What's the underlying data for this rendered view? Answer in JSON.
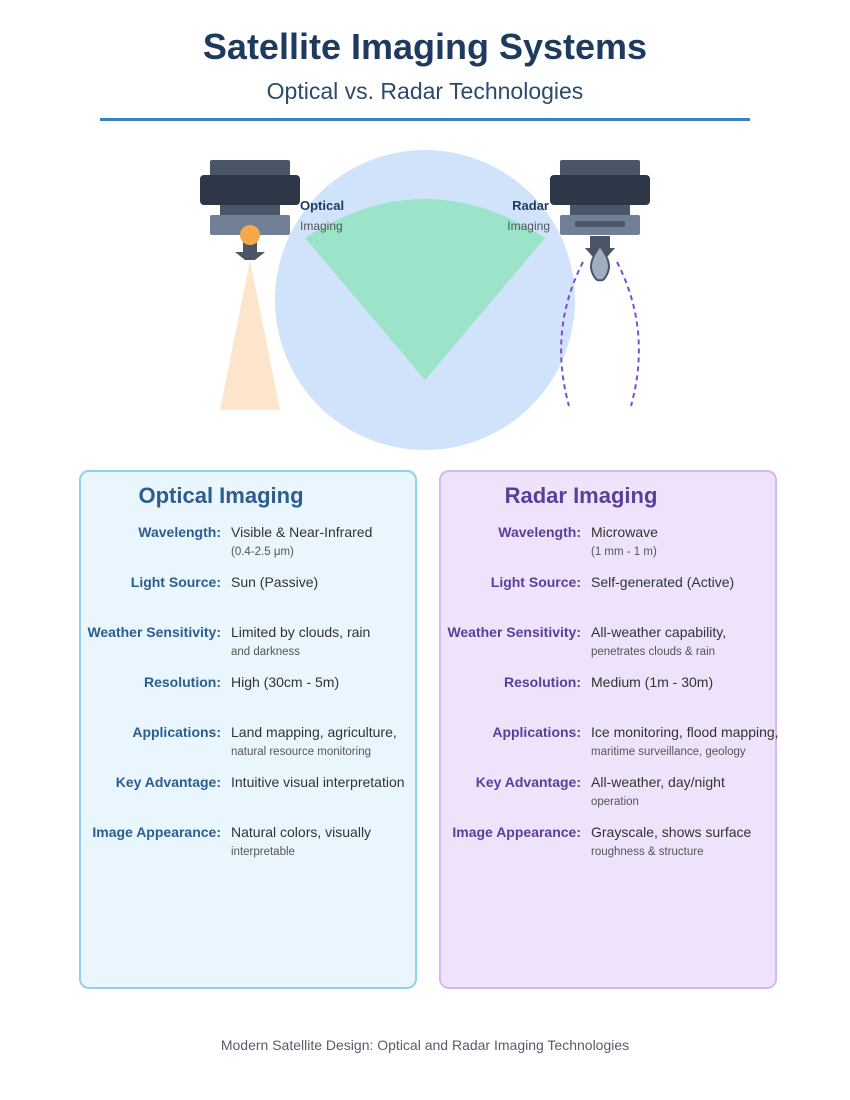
{
  "header": {
    "title": "Satellite Imaging Systems",
    "subtitle": "Optical vs. Radar Technologies"
  },
  "diagram": {
    "optical_label": "Optical",
    "optical_sub": "Imaging",
    "radar_label": "Radar",
    "radar_sub": "Imaging"
  },
  "optical": {
    "title": "Optical Imaging",
    "rows": [
      {
        "label": "Wavelength:",
        "value": "Visible & Near-Infrared",
        "sub": "(0.4-2.5 μm)"
      },
      {
        "label": "Light Source:",
        "value": "Sun (Passive)",
        "sub": ""
      },
      {
        "label": "Weather Sensitivity:",
        "value": "Limited by clouds, rain",
        "sub": "and darkness"
      },
      {
        "label": "Resolution:",
        "value": "High (30cm - 5m)",
        "sub": ""
      },
      {
        "label": "Applications:",
        "value": "Land mapping, agriculture,",
        "sub": "natural resource monitoring"
      },
      {
        "label": "Key Advantage:",
        "value": "Intuitive visual interpretation",
        "sub": ""
      },
      {
        "label": "Image Appearance:",
        "value": "Natural colors, visually",
        "sub": "interpretable"
      }
    ]
  },
  "radar": {
    "title": "Radar Imaging",
    "rows": [
      {
        "label": "Wavelength:",
        "value": "Microwave",
        "sub": "(1 mm - 1 m)"
      },
      {
        "label": "Light Source:",
        "value": "Self-generated (Active)",
        "sub": ""
      },
      {
        "label": "Weather Sensitivity:",
        "value": "All-weather capability,",
        "sub": "penetrates clouds & rain"
      },
      {
        "label": "Resolution:",
        "value": "Medium (1m - 30m)",
        "sub": ""
      },
      {
        "label": "Applications:",
        "value": "Ice monitoring, flood mapping,",
        "sub": "maritime surveillance, geology"
      },
      {
        "label": "Key Advantage:",
        "value": "All-weather, day/night",
        "sub": "operation"
      },
      {
        "label": "Image Appearance:",
        "value": "Grayscale, shows surface",
        "sub": "roughness & structure"
      }
    ]
  },
  "footer": {
    "caption": "Modern Satellite Design: Optical and Radar Imaging Technologies"
  },
  "colors": {
    "title": "#1e3a5f",
    "earth": "#d0e3fa",
    "coverage": "#9be3c9",
    "optical_beam": "#fde6cc",
    "radar_wave": "#7a4fd0",
    "optical_accent": "#2c5d8f",
    "radar_accent": "#5a3e9a"
  },
  "icons": {
    "optical_satellite": "optical-satellite-icon",
    "radar_satellite": "radar-satellite-icon"
  }
}
